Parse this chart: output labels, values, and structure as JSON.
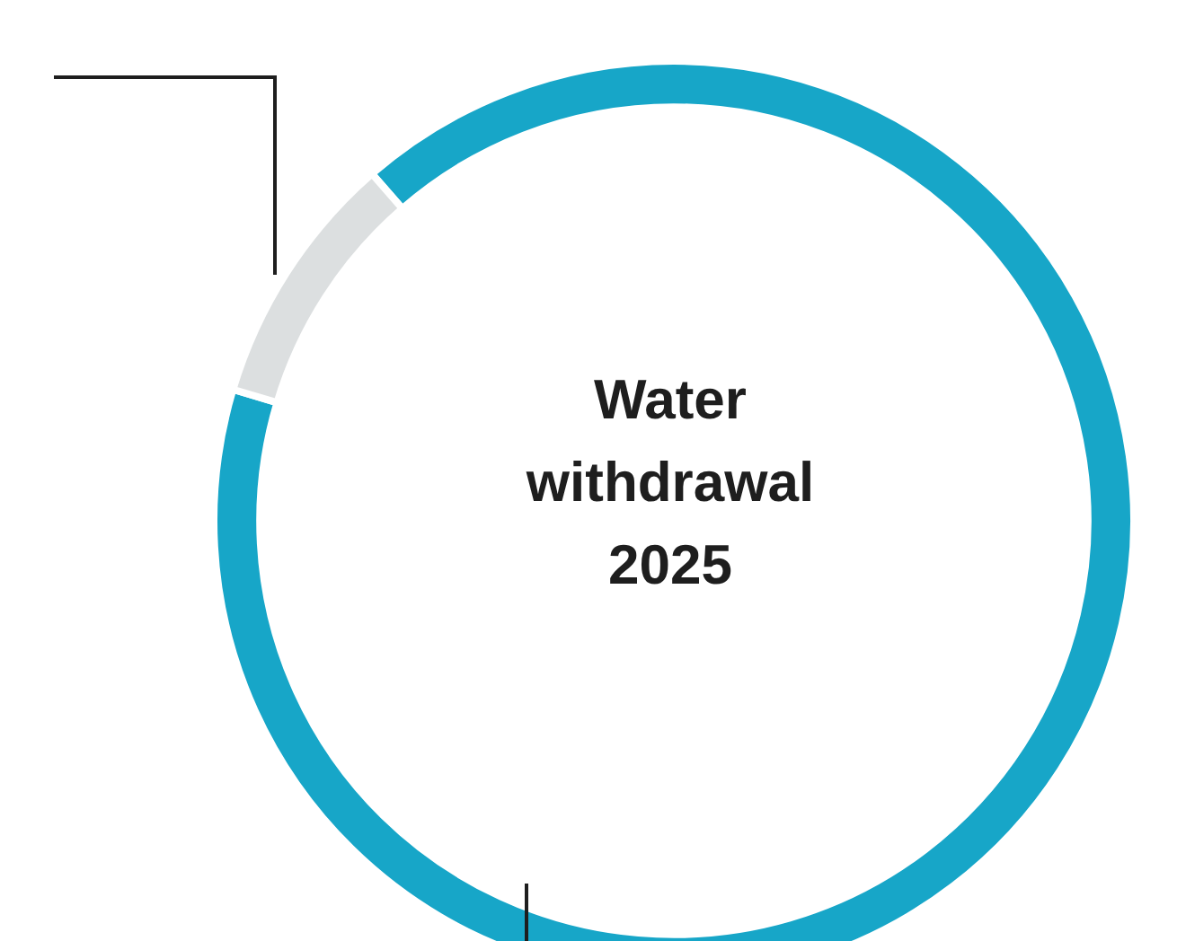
{
  "chart_data": {
    "type": "donut",
    "title": "Water withdrawal 2025",
    "categories": [
      null,
      null
    ],
    "values": [
      91,
      9
    ],
    "colors": [
      "#17a6c8",
      "#dcdfe0"
    ],
    "legend": false
  }
}
